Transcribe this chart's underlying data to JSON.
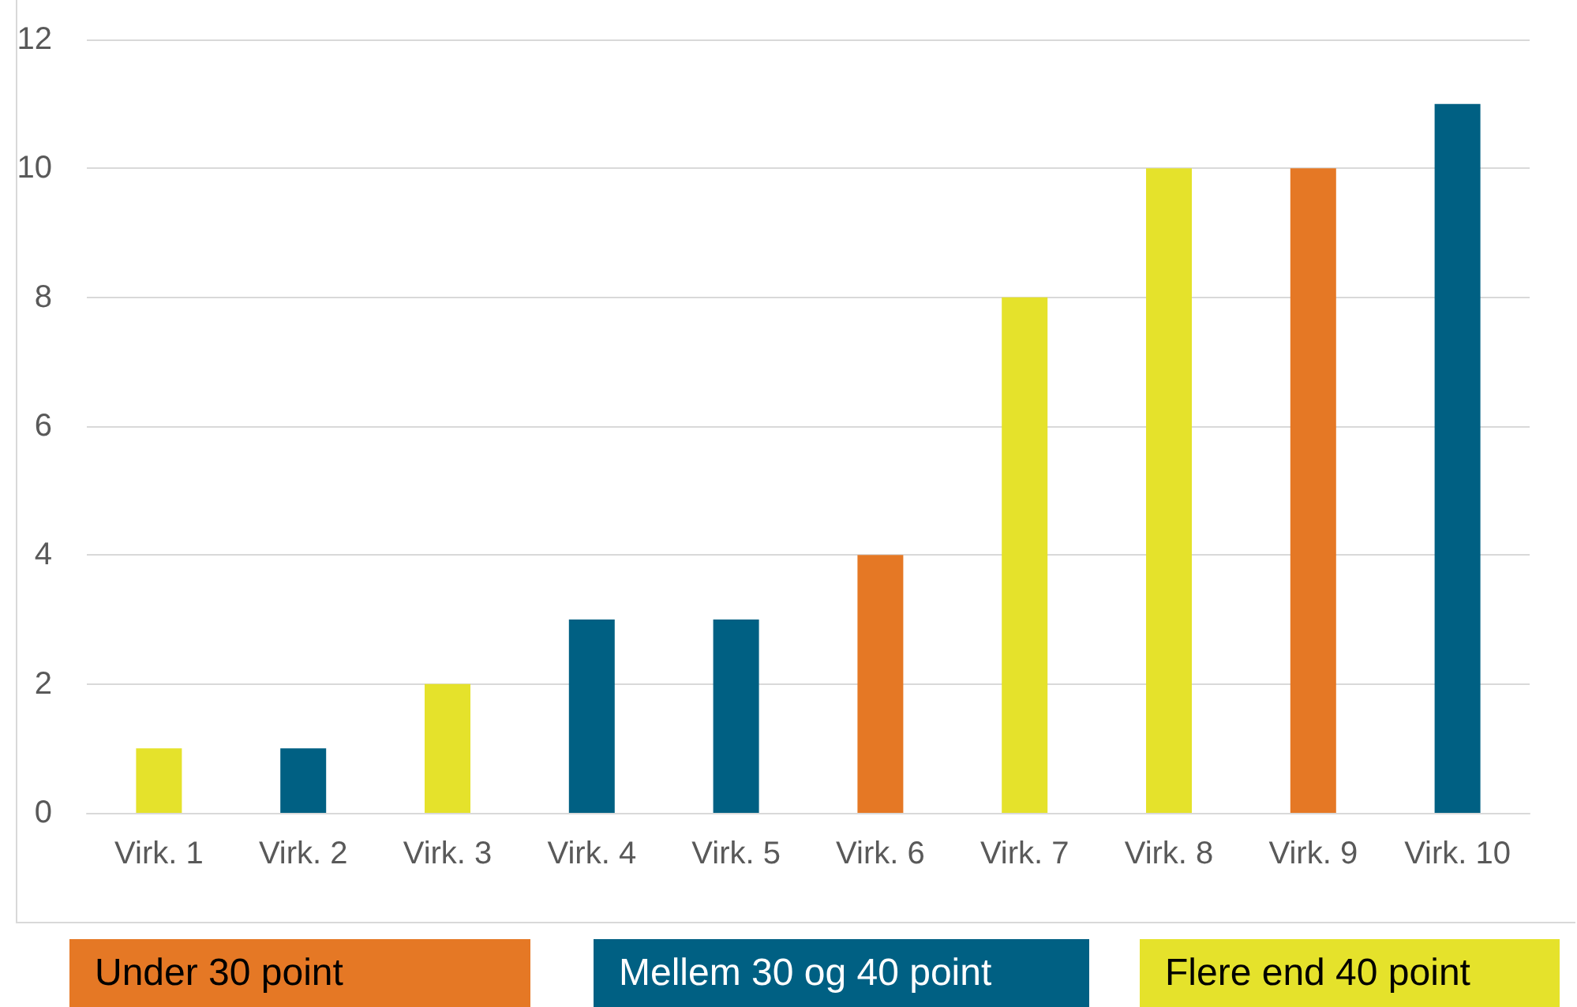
{
  "chart_data": {
    "type": "bar",
    "categories": [
      "Virk. 1",
      "Virk. 2",
      "Virk. 3",
      "Virk. 4",
      "Virk. 5",
      "Virk. 6",
      "Virk. 7",
      "Virk. 8",
      "Virk. 9",
      "Virk. 10"
    ],
    "series": [
      {
        "name": "Under 30 point",
        "color": "#e57825",
        "values": [
          null,
          null,
          null,
          null,
          null,
          4,
          null,
          null,
          10,
          null
        ]
      },
      {
        "name": "Mellem 30 og 40 point",
        "color": "#006083",
        "values": [
          null,
          1,
          null,
          3,
          3,
          null,
          null,
          null,
          null,
          11
        ]
      },
      {
        "name": "Flere end 40 point",
        "color": "#e5e22b",
        "values": [
          1,
          null,
          2,
          null,
          null,
          null,
          8,
          10,
          null,
          null
        ]
      }
    ],
    "ylim": [
      0,
      12
    ],
    "yticks": [
      0,
      2,
      4,
      6,
      8,
      10,
      12
    ],
    "grid": "y",
    "legend": "bottom"
  }
}
